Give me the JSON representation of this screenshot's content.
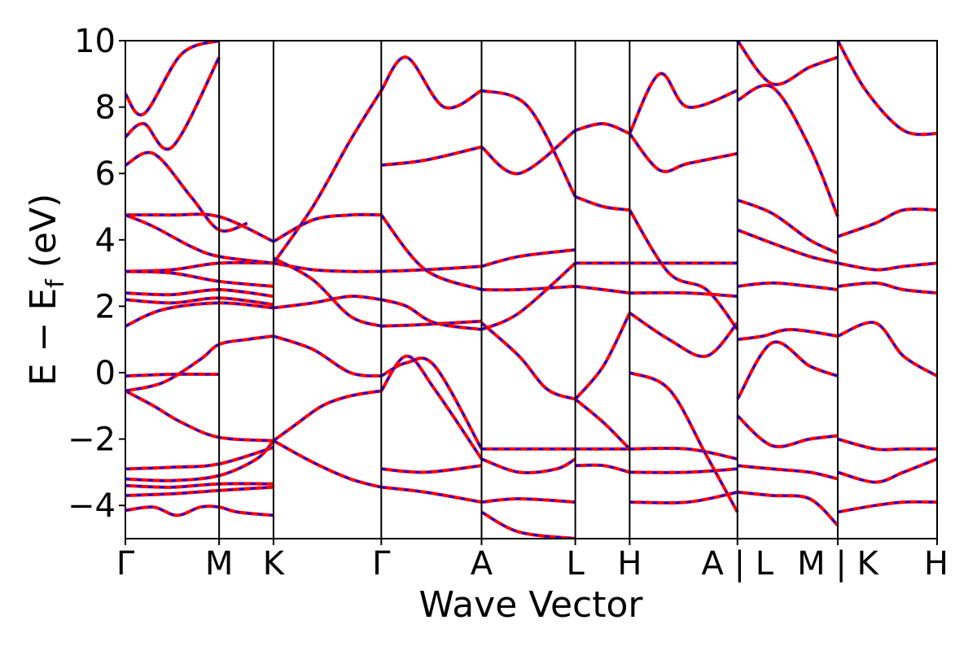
{
  "chart_data": {
    "type": "line",
    "title": "",
    "xlabel": "Wave Vector",
    "ylabel": "E − E_f (eV)",
    "ylabel_parts": {
      "main": "E − E",
      "sub": "f",
      "unit": " (eV)"
    },
    "ylim": [
      -5,
      10
    ],
    "yticks": [
      -4,
      -2,
      0,
      2,
      4,
      6,
      8,
      10
    ],
    "ytick_labels": [
      "−4",
      "−2",
      "0",
      "2",
      "4",
      "6",
      "8",
      "10"
    ],
    "xlim": [
      0,
      8.66
    ],
    "kpath": [
      {
        "label": "Γ",
        "x": 0.0
      },
      {
        "label": "M",
        "x": 1.0
      },
      {
        "label": "K",
        "x": 1.58
      },
      {
        "label": "Γ",
        "x": 2.73
      },
      {
        "label": "A",
        "x": 3.8
      },
      {
        "label": "L",
        "x": 4.8
      },
      {
        "label": "H",
        "x": 5.38
      },
      {
        "label": "A | L",
        "x": 6.53
      },
      {
        "label": "M | K",
        "x": 7.6
      },
      {
        "label": "H",
        "x": 8.66
      }
    ],
    "grid": false,
    "legend": "none",
    "line_style": {
      "solid_color": "#ff0000",
      "dashed_color": "#0000ff"
    },
    "series": [
      {
        "x": [
          0.0,
          0.3,
          0.55,
          0.8,
          1.0,
          1.2,
          1.58
        ],
        "y": [
          -4.15,
          -4.05,
          -4.3,
          -4.05,
          -4.05,
          -4.2,
          -4.3
        ]
      },
      {
        "x": [
          0.0,
          0.5,
          1.0,
          1.58
        ],
        "y": [
          -3.7,
          -3.65,
          -3.55,
          -3.45
        ]
      },
      {
        "x": [
          0.0,
          0.5,
          1.0,
          1.58
        ],
        "y": [
          -3.4,
          -3.45,
          -3.35,
          -3.35
        ]
      },
      {
        "x": [
          0.0,
          0.5,
          1.0,
          1.4,
          1.58
        ],
        "y": [
          -3.2,
          -3.25,
          -3.1,
          -2.6,
          -2.05
        ]
      },
      {
        "x": [
          0.0,
          0.5,
          1.0,
          1.58
        ],
        "y": [
          -2.9,
          -2.85,
          -2.75,
          -2.25
        ]
      },
      {
        "x": [
          0.0,
          0.3,
          0.6,
          1.0,
          1.58
        ],
        "y": [
          -0.55,
          -1.0,
          -1.5,
          -1.95,
          -2.05
        ]
      },
      {
        "x": [
          0.0,
          0.4,
          0.8,
          1.0,
          1.3,
          1.58
        ],
        "y": [
          -0.55,
          -0.3,
          0.4,
          0.85,
          1.0,
          1.1
        ]
      },
      {
        "x": [
          0.0,
          0.5,
          1.0
        ],
        "y": [
          -0.1,
          -0.05,
          -0.05
        ]
      },
      {
        "x": [
          0.0,
          0.4,
          1.0,
          1.58
        ],
        "y": [
          1.4,
          1.9,
          2.1,
          1.95
        ]
      },
      {
        "x": [
          0.0,
          0.5,
          1.0,
          1.58
        ],
        "y": [
          2.2,
          2.1,
          2.25,
          2.05
        ]
      },
      {
        "x": [
          0.0,
          0.5,
          1.0,
          1.58
        ],
        "y": [
          2.4,
          2.35,
          2.5,
          2.3
        ]
      },
      {
        "x": [
          0.0,
          0.5,
          1.0,
          1.58
        ],
        "y": [
          3.05,
          3.1,
          3.3,
          3.3
        ]
      },
      {
        "x": [
          0.0,
          0.5,
          1.0,
          1.58
        ],
        "y": [
          3.05,
          3.0,
          2.75,
          2.6
        ]
      },
      {
        "x": [
          0.0,
          0.5,
          1.0,
          1.58
        ],
        "y": [
          4.75,
          4.75,
          4.7,
          3.95
        ]
      },
      {
        "x": [
          0.0,
          0.3,
          0.7,
          1.0,
          1.58
        ],
        "y": [
          4.75,
          4.4,
          3.8,
          3.5,
          3.3
        ]
      },
      {
        "x": [
          0.0,
          0.3,
          0.7,
          1.0,
          1.3
        ],
        "y": [
          6.25,
          6.6,
          5.3,
          4.3,
          4.5
        ]
      },
      {
        "x": [
          0.0,
          0.2,
          0.5,
          1.0
        ],
        "y": [
          7.1,
          7.5,
          6.8,
          9.5
        ]
      },
      {
        "x": [
          0.0,
          0.2,
          0.6,
          1.0
        ],
        "y": [
          8.4,
          7.8,
          9.6,
          10.0
        ]
      },
      {
        "x": [
          1.58,
          1.8,
          2.1,
          2.4,
          2.73
        ],
        "y": [
          -2.05,
          -1.6,
          -1.0,
          -0.7,
          -0.55
        ]
      },
      {
        "x": [
          1.58,
          2.0,
          2.4,
          2.73
        ],
        "y": [
          1.1,
          0.7,
          0.0,
          -0.1
        ]
      },
      {
        "x": [
          1.58,
          2.0,
          2.4,
          2.73
        ],
        "y": [
          -2.05,
          -2.7,
          -3.2,
          -3.45
        ]
      },
      {
        "x": [
          1.58,
          2.0,
          2.4,
          2.73
        ],
        "y": [
          1.95,
          2.1,
          2.3,
          2.2
        ]
      },
      {
        "x": [
          1.58,
          2.0,
          2.4,
          2.73
        ],
        "y": [
          3.3,
          3.1,
          3.05,
          3.05
        ]
      },
      {
        "x": [
          1.58,
          2.0,
          2.4,
          2.73
        ],
        "y": [
          3.95,
          4.6,
          4.75,
          4.75
        ]
      },
      {
        "x": [
          1.58,
          2.0,
          2.4,
          2.73
        ],
        "y": [
          3.3,
          5.0,
          7.0,
          8.5
        ]
      },
      {
        "x": [
          1.58,
          2.0,
          2.4,
          2.73
        ],
        "y": [
          3.45,
          2.8,
          1.7,
          1.4
        ]
      },
      {
        "x": [
          2.73,
          3.0,
          3.3,
          3.8
        ],
        "y": [
          -0.55,
          0.5,
          -0.5,
          -2.6
        ]
      },
      {
        "x": [
          2.73,
          3.0,
          3.3,
          3.8
        ],
        "y": [
          -0.1,
          0.3,
          0.2,
          -2.3
        ]
      },
      {
        "x": [
          2.73,
          3.2,
          3.8
        ],
        "y": [
          1.4,
          1.45,
          1.55
        ]
      },
      {
        "x": [
          2.73,
          3.0,
          3.3,
          3.8
        ],
        "y": [
          2.2,
          2.0,
          1.5,
          1.3
        ]
      },
      {
        "x": [
          2.73,
          3.2,
          3.8
        ],
        "y": [
          3.05,
          3.1,
          3.2
        ]
      },
      {
        "x": [
          2.73,
          3.2,
          3.8
        ],
        "y": [
          4.75,
          3.1,
          2.5
        ]
      },
      {
        "x": [
          2.73,
          3.2,
          3.8
        ],
        "y": [
          6.25,
          6.4,
          6.8
        ]
      },
      {
        "x": [
          2.73,
          3.0,
          3.4,
          3.8
        ],
        "y": [
          8.5,
          9.5,
          8.0,
          8.5
        ]
      },
      {
        "x": [
          2.73,
          3.2,
          3.8
        ],
        "y": [
          -2.9,
          -3.0,
          -2.8
        ]
      },
      {
        "x": [
          2.73,
          3.2,
          3.8
        ],
        "y": [
          -3.45,
          -3.6,
          -3.9
        ]
      },
      {
        "x": [
          3.8,
          4.2,
          4.8
        ],
        "y": [
          -2.3,
          -2.3,
          -2.3
        ]
      },
      {
        "x": [
          3.8,
          4.2,
          4.5,
          4.8
        ],
        "y": [
          1.5,
          0.5,
          -0.5,
          -0.8
        ]
      },
      {
        "x": [
          3.8,
          4.2,
          4.8
        ],
        "y": [
          1.3,
          1.8,
          3.3
        ]
      },
      {
        "x": [
          3.8,
          4.2,
          4.8
        ],
        "y": [
          2.5,
          2.5,
          2.6
        ]
      },
      {
        "x": [
          3.8,
          4.2,
          4.8
        ],
        "y": [
          3.2,
          3.5,
          3.7
        ]
      },
      {
        "x": [
          3.8,
          4.2,
          4.8
        ],
        "y": [
          6.8,
          6.0,
          7.3
        ]
      },
      {
        "x": [
          3.8,
          4.3,
          4.8
        ],
        "y": [
          8.5,
          8.0,
          5.3
        ]
      },
      {
        "x": [
          3.8,
          4.2,
          4.6,
          4.8
        ],
        "y": [
          -2.6,
          -3.0,
          -2.9,
          -2.6
        ]
      },
      {
        "x": [
          3.8,
          4.2,
          4.8
        ],
        "y": [
          -3.9,
          -3.8,
          -3.9
        ]
      },
      {
        "x": [
          3.8,
          4.2,
          4.8
        ],
        "y": [
          -4.2,
          -4.8,
          -5.0
        ]
      },
      {
        "x": [
          4.8,
          5.1,
          5.38
        ],
        "y": [
          -0.8,
          -1.5,
          -2.3
        ]
      },
      {
        "x": [
          4.8,
          5.1,
          5.38
        ],
        "y": [
          -0.8,
          0.2,
          1.8
        ]
      },
      {
        "x": [
          4.8,
          5.1,
          5.38
        ],
        "y": [
          2.6,
          2.5,
          2.4
        ]
      },
      {
        "x": [
          4.8,
          5.1,
          5.38
        ],
        "y": [
          3.3,
          3.3,
          3.3
        ]
      },
      {
        "x": [
          4.8,
          5.1,
          5.38
        ],
        "y": [
          5.3,
          5.0,
          4.9
        ]
      },
      {
        "x": [
          4.8,
          5.1,
          5.38
        ],
        "y": [
          7.3,
          7.5,
          7.2
        ]
      },
      {
        "x": [
          4.8,
          5.1,
          5.38
        ],
        "y": [
          -2.3,
          -2.3,
          -2.3
        ]
      },
      {
        "x": [
          4.8,
          5.1,
          5.38
        ],
        "y": [
          -2.8,
          -2.8,
          -3.0
        ]
      },
      {
        "x": [
          5.38,
          6.0,
          6.53
        ],
        "y": [
          -2.3,
          -2.3,
          -2.6
        ]
      },
      {
        "x": [
          5.38,
          5.8,
          6.2,
          6.53
        ],
        "y": [
          1.8,
          1.0,
          0.5,
          1.5
        ]
      },
      {
        "x": [
          5.38,
          6.0,
          6.53
        ],
        "y": [
          2.4,
          2.4,
          2.3
        ]
      },
      {
        "x": [
          5.38,
          6.0,
          6.53
        ],
        "y": [
          3.3,
          3.3,
          3.3
        ]
      },
      {
        "x": [
          5.38,
          5.8,
          6.2,
          6.53
        ],
        "y": [
          4.9,
          3.0,
          2.5,
          1.3
        ]
      },
      {
        "x": [
          5.38,
          5.7,
          6.0,
          6.53
        ],
        "y": [
          7.2,
          9.0,
          8.0,
          8.5
        ]
      },
      {
        "x": [
          5.38,
          5.7,
          6.0,
          6.53
        ],
        "y": [
          7.2,
          6.1,
          6.3,
          6.6
        ]
      },
      {
        "x": [
          5.38,
          5.8,
          6.2,
          6.53
        ],
        "y": [
          0.0,
          -0.5,
          -2.5,
          -4.2
        ]
      },
      {
        "x": [
          5.38,
          6.0,
          6.53
        ],
        "y": [
          -3.0,
          -3.0,
          -2.9
        ]
      },
      {
        "x": [
          5.38,
          6.0,
          6.53
        ],
        "y": [
          -3.9,
          -3.9,
          -3.6
        ]
      },
      {
        "x": [
          6.53,
          6.8,
          7.1,
          7.6
        ],
        "y": [
          1.0,
          1.1,
          1.3,
          1.1
        ]
      },
      {
        "x": [
          6.53,
          6.9,
          7.3,
          7.6
        ],
        "y": [
          -0.8,
          0.9,
          0.2,
          -0.1
        ]
      },
      {
        "x": [
          6.53,
          6.9,
          7.3,
          7.6
        ],
        "y": [
          -1.3,
          -2.2,
          -2.0,
          -1.9
        ]
      },
      {
        "x": [
          6.53,
          6.9,
          7.3,
          7.6
        ],
        "y": [
          5.2,
          4.8,
          4.0,
          3.6
        ]
      },
      {
        "x": [
          6.53,
          6.9,
          7.3,
          7.6
        ],
        "y": [
          4.3,
          3.9,
          3.5,
          3.3
        ]
      },
      {
        "x": [
          6.53,
          6.9,
          7.3,
          7.6
        ],
        "y": [
          2.6,
          2.7,
          2.6,
          2.5
        ]
      },
      {
        "x": [
          6.53,
          6.9,
          7.3,
          7.6
        ],
        "y": [
          8.2,
          8.6,
          6.8,
          4.7
        ]
      },
      {
        "x": [
          6.53,
          6.9,
          7.3,
          7.6
        ],
        "y": [
          10.0,
          8.7,
          9.2,
          9.5
        ]
      },
      {
        "x": [
          6.53,
          6.9,
          7.3,
          7.6
        ],
        "y": [
          -2.8,
          -2.9,
          -3.0,
          -3.2
        ]
      },
      {
        "x": [
          6.53,
          6.9,
          7.3,
          7.6
        ],
        "y": [
          -3.6,
          -3.7,
          -3.8,
          -4.6
        ]
      },
      {
        "x": [
          7.6,
          8.0,
          8.3,
          8.66
        ],
        "y": [
          -2.0,
          -2.3,
          -2.3,
          -2.3
        ]
      },
      {
        "x": [
          7.6,
          8.0,
          8.3,
          8.66
        ],
        "y": [
          1.1,
          1.5,
          0.5,
          -0.1
        ]
      },
      {
        "x": [
          7.6,
          8.0,
          8.3,
          8.66
        ],
        "y": [
          4.1,
          4.5,
          4.9,
          4.9
        ]
      },
      {
        "x": [
          7.6,
          8.0,
          8.3,
          8.66
        ],
        "y": [
          2.6,
          2.7,
          2.5,
          2.4
        ]
      },
      {
        "x": [
          7.6,
          8.0,
          8.3,
          8.66
        ],
        "y": [
          3.3,
          3.1,
          3.2,
          3.3
        ]
      },
      {
        "x": [
          7.6,
          7.9,
          8.3,
          8.66
        ],
        "y": [
          10.0,
          8.5,
          7.3,
          7.2
        ]
      },
      {
        "x": [
          7.6,
          8.0,
          8.3,
          8.66
        ],
        "y": [
          -4.2,
          -4.0,
          -3.9,
          -3.9
        ]
      },
      {
        "x": [
          7.6,
          8.0,
          8.3,
          8.66
        ],
        "y": [
          -3.0,
          -3.3,
          -3.0,
          -2.6
        ]
      }
    ]
  }
}
